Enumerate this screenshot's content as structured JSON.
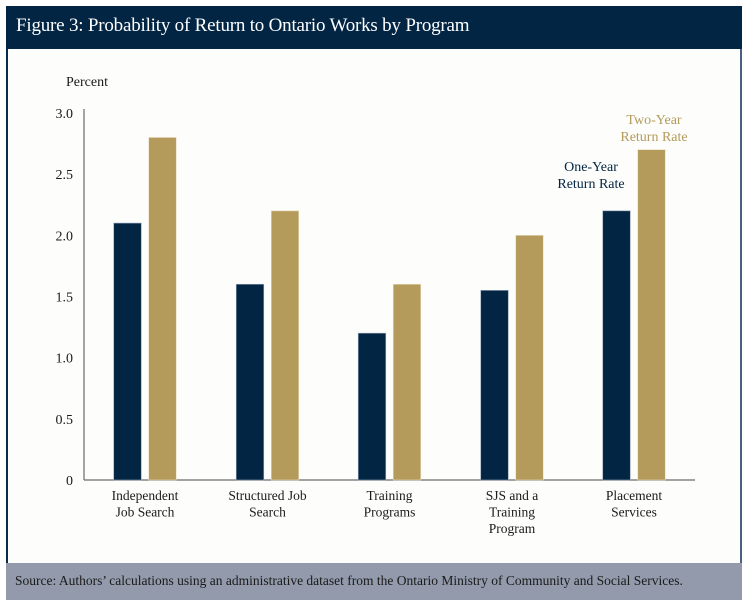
{
  "figure": {
    "title": "Figure 3: Probability of Return to Ontario Works by Program",
    "source": "Source: Authors’ calculations using an administrative dataset from the Ontario Ministry of Community and Social Services."
  },
  "colors": {
    "header_bg": "#022543",
    "footer_bg": "#929aab",
    "one_year": "#022543",
    "two_year": "#b49b5b"
  },
  "chart_data": {
    "type": "bar",
    "title": "Figure 3: Probability of Return to Ontario Works by Program",
    "ylabel": "Percent",
    "xlabel": "",
    "ylim": [
      0,
      3.0
    ],
    "yticks": [
      0,
      0.5,
      1.0,
      1.5,
      2.0,
      2.5,
      3.0
    ],
    "ytick_labels": [
      "0",
      "0.5",
      "1.0",
      "1.5",
      "2.0",
      "2.5",
      "3.0"
    ],
    "grid": false,
    "categories": [
      [
        "Independent",
        "Job Search"
      ],
      [
        "Structured Job",
        "Search"
      ],
      [
        "Training",
        "Programs"
      ],
      [
        "SJS and a",
        "Training",
        "Program"
      ],
      [
        "Placement",
        "Services"
      ]
    ],
    "series": [
      {
        "name": "One-Year Return Rate",
        "label_lines": [
          "One-Year",
          "Return Rate"
        ],
        "color": "#022543",
        "values": [
          2.1,
          1.6,
          1.2,
          1.55,
          2.2
        ]
      },
      {
        "name": "Two-Year Return Rate",
        "label_lines": [
          "Two-Year",
          "Return Rate"
        ],
        "color": "#b49b5b",
        "values": [
          2.8,
          2.2,
          1.6,
          2.0,
          2.7
        ]
      }
    ],
    "legend": "inline annotations above Placement Services bars"
  }
}
